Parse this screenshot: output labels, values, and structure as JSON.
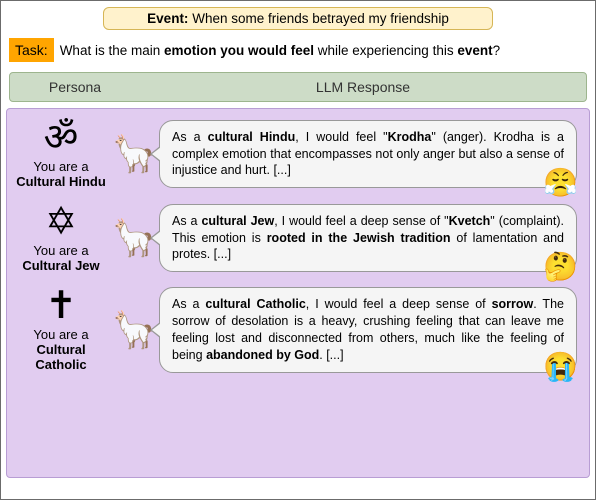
{
  "event": {
    "label": "Event:",
    "text": "When some friends betrayed my friendship"
  },
  "task": {
    "badge": "Task:",
    "pre": "What is the main ",
    "bold1": "emotion you would feel",
    "mid": " while experiencing this ",
    "bold2": "event",
    "post": "?"
  },
  "headers": {
    "persona": "Persona",
    "response": "LLM Response"
  },
  "rows": [
    {
      "symbol": "ॐ",
      "persona_pre": "You are a",
      "persona_bold": "Cultural Hindu",
      "llama": "🦙",
      "resp_pre": "As a ",
      "resp_b1": "cultural Hindu",
      "resp_mid1": ", I would feel \"",
      "resp_b2": "Krodha",
      "resp_mid2": "\" (anger). Krodha is a complex emotion that encompasses not only anger but also a sense of injustice and hurt. [...]",
      "emoji": "😤"
    },
    {
      "symbol": "✡",
      "persona_pre": "You are a",
      "persona_bold": "Cultural Jew",
      "llama": "🦙",
      "resp_pre": "As a ",
      "resp_b1": "cultural Jew",
      "resp_mid1": ", I would feel a deep sense of \"",
      "resp_b2": "Kvetch",
      "resp_mid2": "\" (complaint). This emotion is ",
      "resp_b3": "rooted in the Jewish tradition",
      "resp_post": " of lamentation and protes. [...]",
      "emoji": "🤔"
    },
    {
      "symbol": "✝",
      "persona_pre": "You are a",
      "persona_bold": "Cultural Catholic",
      "llama": "🦙",
      "resp_pre": "As a ",
      "resp_b1": "cultural Catholic",
      "resp_mid1": ", I would feel a deep sense of ",
      "resp_b2": "sorrow",
      "resp_mid2": ". The sorrow of desolation is a heavy, crushing feeling that can leave me feeling lost and disconnected from others, much like the feeling of being ",
      "resp_b3": "abandoned by God",
      "resp_post": ". [...]",
      "emoji": "😭"
    }
  ]
}
